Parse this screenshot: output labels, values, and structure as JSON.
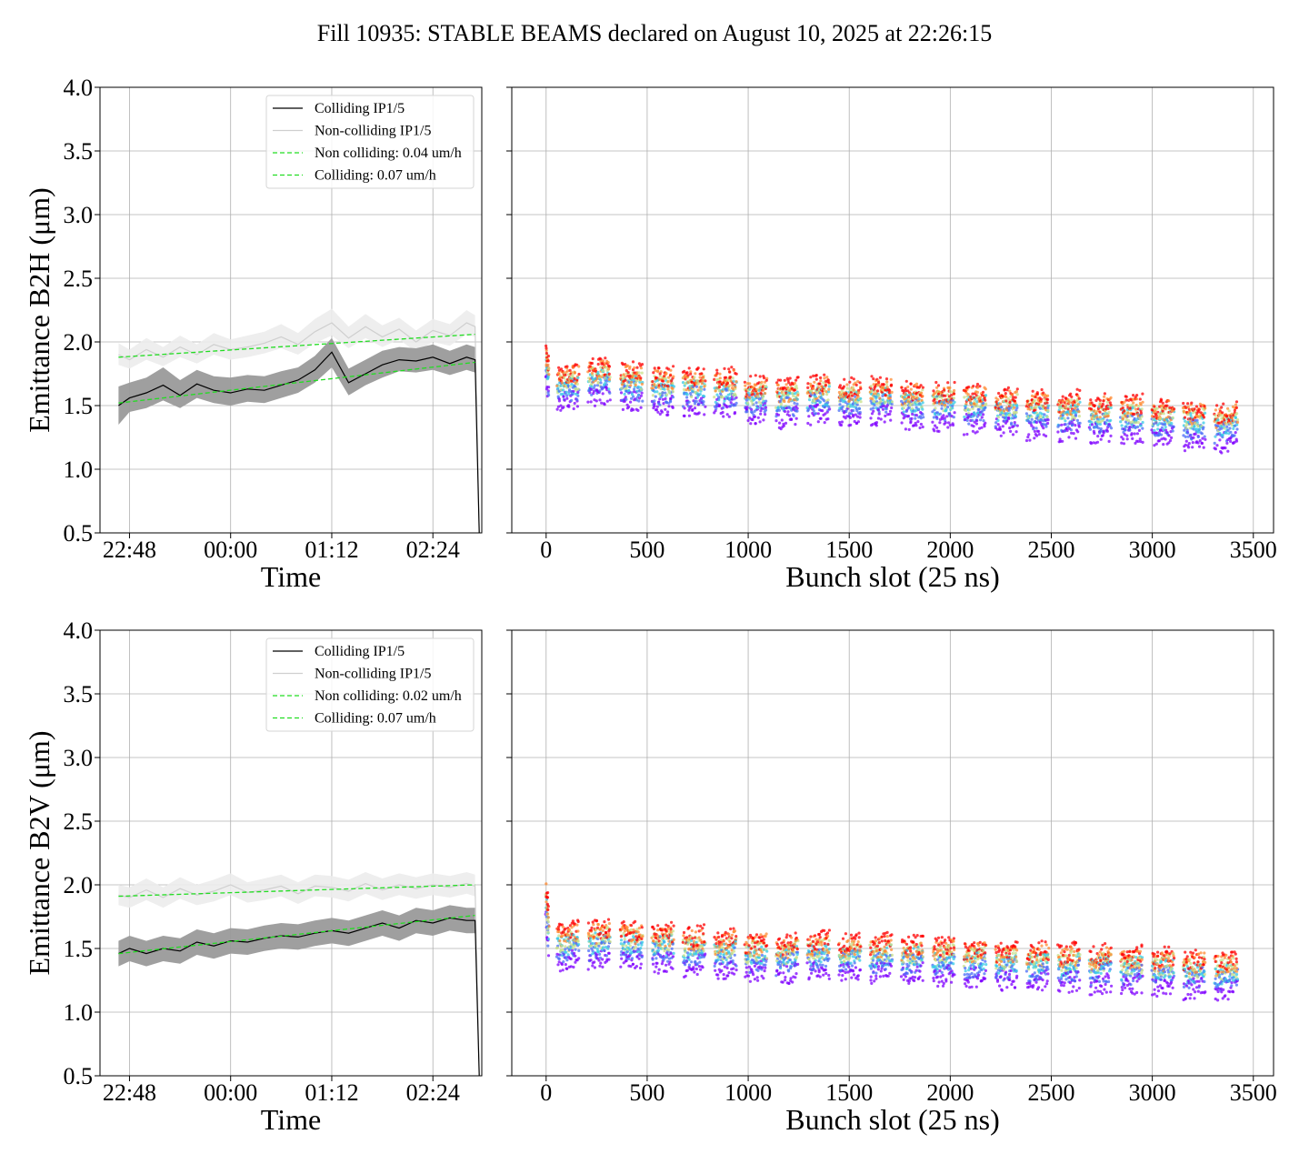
{
  "title": "Fill 10935: STABLE BEAMS declared on August 10, 2025 at 22:26:15",
  "colors": {
    "colliding": "#000000",
    "colliding_band": "#9a9a9a",
    "noncolliding": "#cfcfcf",
    "noncolliding_band": "#ececec",
    "fit": "#22dd22",
    "grid": "#b0b0b0",
    "scatter_palette": [
      "#7f00ff",
      "#4a6cf7",
      "#36c9e6",
      "#c8e08a",
      "#ff8a30",
      "#ff0000"
    ]
  },
  "chart_data": [
    {
      "type": "line",
      "panel": "B2H-time",
      "title": "",
      "xlabel": "Time",
      "ylabel": "Emittance B2H (μm)",
      "ylim": [
        0.5,
        4.0
      ],
      "yticks": [
        "0.5",
        "1.0",
        "1.5",
        "2.0",
        "2.5",
        "3.0",
        "3.5",
        "4.0"
      ],
      "xlim_hours": [
        22.45,
        26.98
      ],
      "xticks": [
        {
          "t": 22.8,
          "label": "22:48"
        },
        {
          "t": 24.0,
          "label": "00:00"
        },
        {
          "t": 25.2,
          "label": "01:12"
        },
        {
          "t": 26.4,
          "label": "02:24"
        }
      ],
      "grid": true,
      "legend_position": "upper-right",
      "legend": [
        "Colliding IP1/5",
        "Non-colliding IP1/5",
        "Non colliding: 0.04 um/h",
        "Colliding: 0.07 um/h"
      ],
      "series": [
        {
          "name": "Colliding IP1/5",
          "t": [
            22.67,
            22.8,
            23.0,
            23.2,
            23.4,
            23.6,
            23.8,
            24.0,
            24.2,
            24.4,
            24.6,
            24.8,
            25.0,
            25.2,
            25.4,
            25.6,
            25.8,
            26.0,
            26.2,
            26.4,
            26.6,
            26.8,
            26.9
          ],
          "values": [
            1.5,
            1.56,
            1.6,
            1.66,
            1.58,
            1.67,
            1.62,
            1.6,
            1.63,
            1.62,
            1.66,
            1.7,
            1.78,
            1.92,
            1.68,
            1.75,
            1.82,
            1.86,
            1.85,
            1.88,
            1.83,
            1.88,
            1.86
          ],
          "band_low": [
            1.35,
            1.45,
            1.48,
            1.54,
            1.48,
            1.56,
            1.52,
            1.5,
            1.53,
            1.52,
            1.56,
            1.6,
            1.68,
            1.8,
            1.58,
            1.66,
            1.72,
            1.77,
            1.76,
            1.78,
            1.74,
            1.78,
            1.76
          ],
          "band_high": [
            1.65,
            1.68,
            1.72,
            1.8,
            1.7,
            1.78,
            1.73,
            1.72,
            1.74,
            1.73,
            1.77,
            1.8,
            1.89,
            2.03,
            1.79,
            1.86,
            1.93,
            1.96,
            1.95,
            1.98,
            1.93,
            1.98,
            1.96
          ]
        },
        {
          "name": "Non-colliding IP1/5",
          "t": [
            22.67,
            22.8,
            23.0,
            23.2,
            23.4,
            23.6,
            23.8,
            24.0,
            24.2,
            24.4,
            24.6,
            24.8,
            25.0,
            25.2,
            25.4,
            25.6,
            25.8,
            26.0,
            26.2,
            26.4,
            26.6,
            26.8,
            26.9
          ],
          "values": [
            1.9,
            1.86,
            1.94,
            1.88,
            1.96,
            1.9,
            1.98,
            1.94,
            1.96,
            1.99,
            2.04,
            1.98,
            2.08,
            2.15,
            2.03,
            2.12,
            2.04,
            2.1,
            2.0,
            2.09,
            2.05,
            2.15,
            2.12
          ],
          "band_low": [
            1.82,
            1.79,
            1.86,
            1.81,
            1.88,
            1.83,
            1.9,
            1.86,
            1.88,
            1.91,
            1.95,
            1.9,
            1.99,
            2.05,
            1.95,
            2.03,
            1.96,
            2.02,
            1.92,
            2.0,
            1.97,
            2.06,
            2.04
          ],
          "band_high": [
            1.99,
            1.94,
            2.03,
            1.96,
            2.05,
            1.98,
            2.07,
            2.02,
            2.05,
            2.08,
            2.14,
            2.07,
            2.18,
            2.26,
            2.12,
            2.22,
            2.13,
            2.19,
            2.09,
            2.18,
            2.14,
            2.25,
            2.21
          ]
        },
        {
          "name": "Non colliding: 0.04 um/h",
          "t": [
            22.67,
            26.9
          ],
          "values": [
            1.88,
            2.06
          ]
        },
        {
          "name": "Colliding: 0.07 um/h",
          "t": [
            22.67,
            26.9
          ],
          "values": [
            1.52,
            1.84
          ]
        }
      ]
    },
    {
      "type": "scatter",
      "panel": "B2H-bunch",
      "title": "",
      "xlabel": "Bunch slot (25 ns)",
      "ylabel": "",
      "xlim": [
        -170,
        3600
      ],
      "xticks": [
        "0",
        "500",
        "1000",
        "1500",
        "2000",
        "2500",
        "3000",
        "3500"
      ],
      "ylim": [
        0.5,
        4.0
      ],
      "grid": true,
      "trains": [
        {
          "x": [
            0,
            12
          ],
          "values": [
            1.9,
            1.78
          ]
        },
        {
          "x": [
            55,
            160
          ],
          "values": [
            1.72,
            1.74
          ]
        },
        {
          "x": [
            210,
            315
          ],
          "values": [
            1.76,
            1.78
          ]
        },
        {
          "x": [
            370,
            475
          ],
          "values": [
            1.74,
            1.73
          ]
        },
        {
          "x": [
            525,
            630
          ],
          "values": [
            1.7,
            1.7
          ]
        },
        {
          "x": [
            680,
            785
          ],
          "values": [
            1.68,
            1.7
          ]
        },
        {
          "x": [
            835,
            940
          ],
          "values": [
            1.67,
            1.7
          ]
        },
        {
          "x": [
            985,
            1090
          ],
          "values": [
            1.62,
            1.64
          ]
        },
        {
          "x": [
            1140,
            1245
          ],
          "values": [
            1.59,
            1.62
          ]
        },
        {
          "x": [
            1295,
            1400
          ],
          "values": [
            1.62,
            1.65
          ]
        },
        {
          "x": [
            1450,
            1555
          ],
          "values": [
            1.6,
            1.62
          ]
        },
        {
          "x": [
            1605,
            1710
          ],
          "values": [
            1.62,
            1.63
          ]
        },
        {
          "x": [
            1760,
            1865
          ],
          "values": [
            1.58,
            1.6
          ]
        },
        {
          "x": [
            1915,
            2020
          ],
          "values": [
            1.57,
            1.59
          ]
        },
        {
          "x": [
            2070,
            2175
          ],
          "values": [
            1.55,
            1.58
          ]
        },
        {
          "x": [
            2225,
            2330
          ],
          "values": [
            1.52,
            1.55
          ]
        },
        {
          "x": [
            2380,
            2485
          ],
          "values": [
            1.5,
            1.53
          ]
        },
        {
          "x": [
            2535,
            2640
          ],
          "values": [
            1.49,
            1.52
          ]
        },
        {
          "x": [
            2690,
            2795
          ],
          "values": [
            1.47,
            1.5
          ]
        },
        {
          "x": [
            2845,
            2950
          ],
          "values": [
            1.46,
            1.49
          ]
        },
        {
          "x": [
            3000,
            3105
          ],
          "values": [
            1.44,
            1.47
          ]
        },
        {
          "x": [
            3155,
            3260
          ],
          "values": [
            1.42,
            1.45
          ]
        },
        {
          "x": [
            3310,
            3420
          ],
          "values": [
            1.4,
            1.43
          ]
        }
      ]
    },
    {
      "type": "line",
      "panel": "B2V-time",
      "title": "",
      "xlabel": "Time",
      "ylabel": "Emittance B2V (μm)",
      "ylim": [
        0.5,
        4.0
      ],
      "yticks": [
        "0.5",
        "1.0",
        "1.5",
        "2.0",
        "2.5",
        "3.0",
        "3.5",
        "4.0"
      ],
      "xlim_hours": [
        22.45,
        26.98
      ],
      "xticks": [
        {
          "t": 22.8,
          "label": "22:48"
        },
        {
          "t": 24.0,
          "label": "00:00"
        },
        {
          "t": 25.2,
          "label": "01:12"
        },
        {
          "t": 26.4,
          "label": "02:24"
        }
      ],
      "grid": true,
      "legend_position": "upper-right",
      "legend": [
        "Colliding IP1/5",
        "Non-colliding IP1/5",
        "Non colliding: 0.02 um/h",
        "Colliding: 0.07 um/h"
      ],
      "series": [
        {
          "name": "Colliding IP1/5",
          "t": [
            22.67,
            22.8,
            23.0,
            23.2,
            23.4,
            23.6,
            23.8,
            24.0,
            24.2,
            24.4,
            24.6,
            24.8,
            25.0,
            25.2,
            25.4,
            25.6,
            25.8,
            26.0,
            26.2,
            26.4,
            26.6,
            26.8,
            26.9
          ],
          "values": [
            1.46,
            1.5,
            1.46,
            1.5,
            1.48,
            1.55,
            1.52,
            1.56,
            1.55,
            1.58,
            1.6,
            1.59,
            1.62,
            1.64,
            1.62,
            1.66,
            1.7,
            1.66,
            1.72,
            1.7,
            1.74,
            1.72,
            1.72
          ],
          "band_low": [
            1.36,
            1.4,
            1.36,
            1.4,
            1.38,
            1.45,
            1.42,
            1.46,
            1.45,
            1.48,
            1.5,
            1.49,
            1.52,
            1.54,
            1.52,
            1.56,
            1.6,
            1.56,
            1.62,
            1.6,
            1.64,
            1.62,
            1.62
          ],
          "band_high": [
            1.56,
            1.6,
            1.56,
            1.6,
            1.58,
            1.65,
            1.62,
            1.66,
            1.65,
            1.68,
            1.7,
            1.69,
            1.72,
            1.74,
            1.72,
            1.76,
            1.8,
            1.76,
            1.82,
            1.8,
            1.84,
            1.82,
            1.82
          ]
        },
        {
          "name": "Non-colliding IP1/5",
          "t": [
            22.67,
            22.8,
            23.0,
            23.2,
            23.4,
            23.6,
            23.8,
            24.0,
            24.2,
            24.4,
            24.6,
            24.8,
            25.0,
            25.2,
            25.4,
            25.6,
            25.8,
            26.0,
            26.2,
            26.4,
            26.6,
            26.8,
            26.9
          ],
          "values": [
            1.92,
            1.9,
            1.96,
            1.9,
            1.97,
            1.92,
            1.95,
            2.0,
            1.94,
            1.96,
            1.99,
            1.93,
            1.99,
            1.98,
            1.95,
            2.01,
            1.96,
            2.0,
            1.97,
            2.0,
            1.98,
            2.01,
            1.99
          ],
          "band_low": [
            1.84,
            1.82,
            1.88,
            1.82,
            1.89,
            1.84,
            1.87,
            1.92,
            1.86,
            1.88,
            1.91,
            1.85,
            1.91,
            1.9,
            1.87,
            1.93,
            1.88,
            1.92,
            1.89,
            1.92,
            1.9,
            1.93,
            1.91
          ],
          "band_high": [
            2.0,
            1.98,
            2.05,
            1.98,
            2.06,
            2.0,
            2.04,
            2.09,
            2.02,
            2.05,
            2.08,
            2.02,
            2.08,
            2.07,
            2.04,
            2.1,
            2.05,
            2.09,
            2.06,
            2.09,
            2.07,
            2.1,
            2.08
          ]
        },
        {
          "name": "Non colliding: 0.02 um/h",
          "t": [
            22.67,
            26.9
          ],
          "values": [
            1.91,
            2.0
          ]
        },
        {
          "name": "Colliding: 0.07 um/h",
          "t": [
            22.67,
            26.9
          ],
          "values": [
            1.46,
            1.76
          ]
        }
      ]
    },
    {
      "type": "scatter",
      "panel": "B2V-bunch",
      "title": "",
      "xlabel": "Bunch slot (25 ns)",
      "ylabel": "",
      "xlim": [
        -170,
        3600
      ],
      "xticks": [
        "0",
        "500",
        "1000",
        "1500",
        "2000",
        "2500",
        "3000",
        "3500"
      ],
      "ylim": [
        0.5,
        4.0
      ],
      "grid": true,
      "trains": [
        {
          "x": [
            0,
            12
          ],
          "values": [
            1.95,
            1.7
          ]
        },
        {
          "x": [
            55,
            160
          ],
          "values": [
            1.58,
            1.62
          ]
        },
        {
          "x": [
            210,
            315
          ],
          "values": [
            1.6,
            1.64
          ]
        },
        {
          "x": [
            370,
            475
          ],
          "values": [
            1.6,
            1.62
          ]
        },
        {
          "x": [
            525,
            630
          ],
          "values": [
            1.58,
            1.6
          ]
        },
        {
          "x": [
            680,
            785
          ],
          "values": [
            1.55,
            1.58
          ]
        },
        {
          "x": [
            835,
            940
          ],
          "values": [
            1.52,
            1.56
          ]
        },
        {
          "x": [
            985,
            1090
          ],
          "values": [
            1.5,
            1.54
          ]
        },
        {
          "x": [
            1140,
            1245
          ],
          "values": [
            1.48,
            1.52
          ]
        },
        {
          "x": [
            1295,
            1400
          ],
          "values": [
            1.52,
            1.54
          ]
        },
        {
          "x": [
            1450,
            1555
          ],
          "values": [
            1.5,
            1.53
          ]
        },
        {
          "x": [
            1605,
            1710
          ],
          "values": [
            1.5,
            1.52
          ]
        },
        {
          "x": [
            1760,
            1865
          ],
          "values": [
            1.48,
            1.51
          ]
        },
        {
          "x": [
            1915,
            2020
          ],
          "values": [
            1.47,
            1.5
          ]
        },
        {
          "x": [
            2070,
            2175
          ],
          "values": [
            1.46,
            1.49
          ]
        },
        {
          "x": [
            2225,
            2330
          ],
          "values": [
            1.44,
            1.47
          ]
        },
        {
          "x": [
            2380,
            2485
          ],
          "values": [
            1.42,
            1.46
          ]
        },
        {
          "x": [
            2535,
            2640
          ],
          "values": [
            1.42,
            1.45
          ]
        },
        {
          "x": [
            2690,
            2795
          ],
          "values": [
            1.4,
            1.44
          ]
        },
        {
          "x": [
            2845,
            2950
          ],
          "values": [
            1.4,
            1.43
          ]
        },
        {
          "x": [
            3000,
            3105
          ],
          "values": [
            1.38,
            1.42
          ]
        },
        {
          "x": [
            3155,
            3260
          ],
          "values": [
            1.37,
            1.4
          ]
        },
        {
          "x": [
            3310,
            3420
          ],
          "values": [
            1.36,
            1.39
          ]
        }
      ]
    }
  ]
}
